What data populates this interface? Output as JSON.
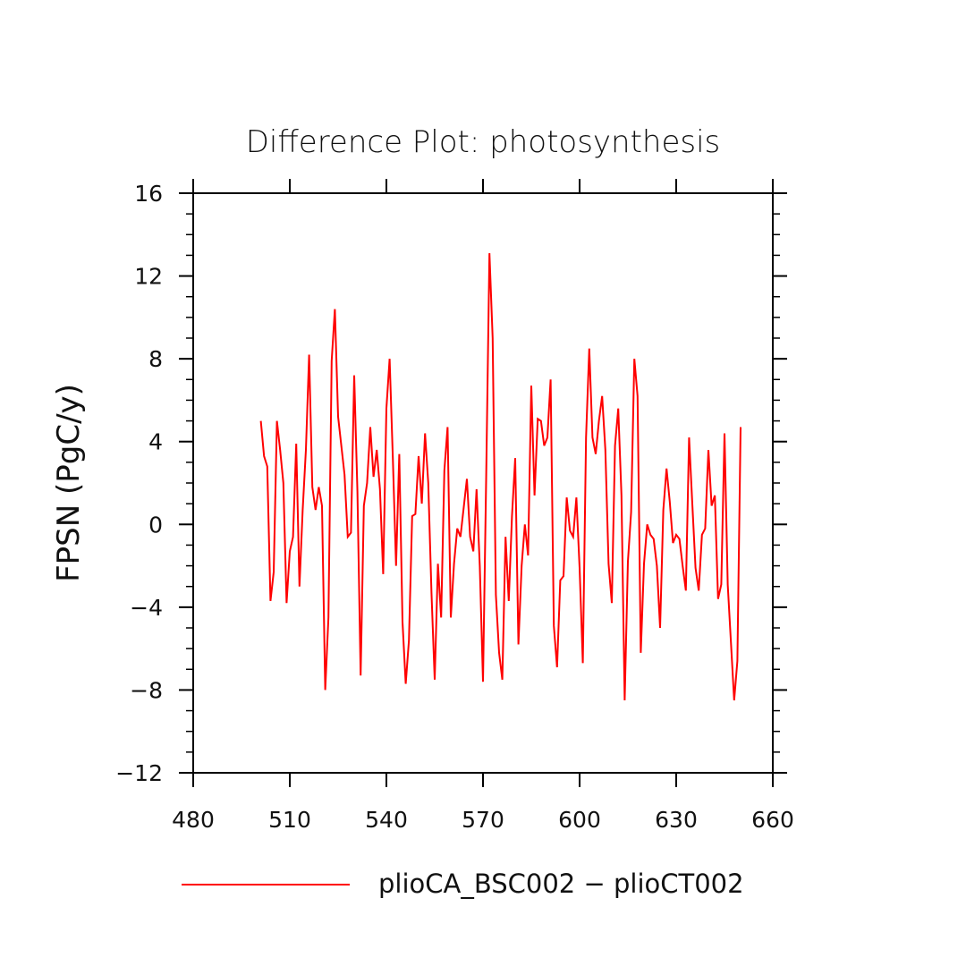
{
  "chart_data": {
    "type": "line",
    "title": "Difference Plot: photosynthesis",
    "xlabel": "",
    "ylabel": "FPSN  (PgC/y)",
    "xlim": [
      480,
      660
    ],
    "ylim": [
      -12,
      16
    ],
    "x_ticks": [
      480,
      510,
      540,
      570,
      600,
      630,
      660
    ],
    "x_tick_labels": [
      "480",
      "510",
      "540",
      "570",
      "600",
      "630",
      "660"
    ],
    "y_ticks": [
      -12,
      -8,
      -4,
      0,
      4,
      8,
      12,
      16
    ],
    "y_tick_labels": [
      "−12",
      "−8",
      "−4",
      "0",
      "4",
      "8",
      "12",
      "16"
    ],
    "grid": false,
    "legend_position": "bottom",
    "series": [
      {
        "name": "plioCA_BSC002 − plioCT002",
        "color": "#ff0000",
        "x": [
          501,
          502,
          503,
          504,
          505,
          506,
          507,
          508,
          509,
          510,
          511,
          512,
          513,
          514,
          515,
          516,
          517,
          518,
          519,
          520,
          521,
          522,
          523,
          524,
          525,
          526,
          527,
          528,
          529,
          530,
          531,
          532,
          533,
          534,
          535,
          536,
          537,
          538,
          539,
          540,
          541,
          542,
          543,
          544,
          545,
          546,
          547,
          548,
          549,
          550,
          551,
          552,
          553,
          554,
          555,
          556,
          557,
          558,
          559,
          560,
          561,
          562,
          563,
          564,
          565,
          566,
          567,
          568,
          569,
          570,
          571,
          572,
          573,
          574,
          575,
          576,
          577,
          578,
          579,
          580,
          581,
          582,
          583,
          584,
          585,
          586,
          587,
          588,
          589,
          590,
          591,
          592,
          593,
          594,
          595,
          596,
          597,
          598,
          599,
          600,
          601,
          602,
          603,
          604,
          605,
          606,
          607,
          608,
          609,
          610,
          611,
          612,
          613,
          614,
          615,
          616,
          617,
          618,
          619,
          620,
          621,
          622,
          623,
          624,
          625,
          626,
          627,
          628,
          629,
          630,
          631,
          632,
          633,
          634,
          635,
          636,
          637,
          638,
          639,
          640,
          641,
          642,
          643,
          644,
          645,
          646,
          647,
          648,
          649,
          650
        ],
        "values": [
          5.0,
          3.3,
          2.8,
          -3.7,
          -2.3,
          5.0,
          3.6,
          2.0,
          -3.8,
          -1.3,
          -0.6,
          3.9,
          -3.0,
          0.7,
          3.6,
          8.2,
          1.8,
          0.7,
          1.8,
          0.9,
          -8.0,
          -4.5,
          7.9,
          10.4,
          5.2,
          3.8,
          2.4,
          -0.6,
          -0.4,
          7.2,
          1.6,
          -7.3,
          0.9,
          2.0,
          4.7,
          2.3,
          3.6,
          1.7,
          -2.4,
          5.6,
          8.0,
          3.2,
          -2.0,
          3.4,
          -4.7,
          -7.7,
          -5.6,
          0.4,
          0.5,
          3.3,
          1.0,
          4.4,
          2.0,
          -3.3,
          -7.5,
          -1.9,
          -4.5,
          2.6,
          4.7,
          -4.5,
          -1.9,
          -0.2,
          -0.6,
          0.8,
          2.2,
          -0.6,
          -1.3,
          1.7,
          -2.0,
          -7.6,
          2.4,
          13.1,
          9.0,
          -3.4,
          -6.2,
          -7.5,
          -0.6,
          -3.7,
          0.4,
          3.2,
          -5.8,
          -2.0,
          0.0,
          -1.5,
          6.7,
          1.4,
          5.1,
          5.0,
          3.8,
          4.2,
          7.0,
          -4.9,
          -6.9,
          -2.7,
          -2.5,
          1.3,
          -0.3,
          -0.6,
          1.3,
          -2.1,
          -6.7,
          4.2,
          8.5,
          4.2,
          3.4,
          5.0,
          6.2,
          3.6,
          -1.9,
          -3.8,
          3.8,
          5.6,
          1.4,
          -8.5,
          -1.8,
          0.6,
          8.0,
          6.2,
          -6.2,
          -1.9,
          0.0,
          -0.5,
          -0.7,
          -2.0,
          -5.0,
          0.7,
          2.7,
          1.1,
          -0.9,
          -0.5,
          -0.7,
          -2.0,
          -3.2,
          4.2,
          1.0,
          -2.1,
          -3.2,
          -0.5,
          -0.2,
          3.6,
          0.9,
          1.4,
          -3.6,
          -2.9,
          4.4,
          -2.9,
          -5.7,
          -8.5,
          -6.6,
          4.7
        ]
      }
    ]
  }
}
